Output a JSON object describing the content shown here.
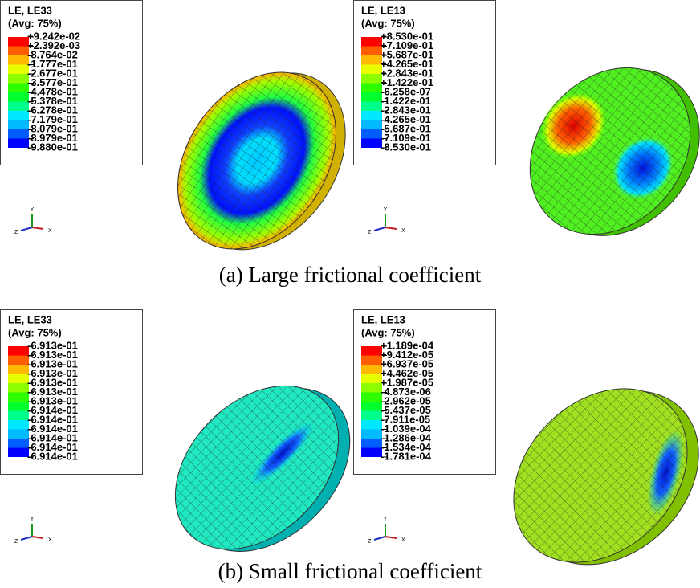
{
  "panels": [
    {
      "legend": {
        "title": "LE, LE33",
        "subtitle": "(Avg: 75%)",
        "values": [
          "+9.242e-02",
          "+2.392e-03",
          "-8.764e-02",
          "-1.777e-01",
          "-2.677e-01",
          "-3.577e-01",
          "-4.478e-01",
          "-5.378e-01",
          "-6.278e-01",
          "-7.179e-01",
          "-8.079e-01",
          "-8.979e-01",
          "-9.880e-01"
        ]
      }
    },
    {
      "legend": {
        "title": "LE, LE13",
        "subtitle": "(Avg: 75%)",
        "values": [
          "+8.530e-01",
          "+7.109e-01",
          "+5.687e-01",
          "+4.265e-01",
          "+2.843e-01",
          "+1.422e-01",
          "-6.258e-07",
          "-1.422e-01",
          "-2.843e-01",
          "-4.265e-01",
          "-5.687e-01",
          "-7.109e-01",
          "-8.530e-01"
        ]
      }
    },
    {
      "legend": {
        "title": "LE, LE33",
        "subtitle": "(Avg: 75%)",
        "values": [
          "-6.913e-01",
          "-6.913e-01",
          "-6.913e-01",
          "-6.913e-01",
          "-6.913e-01",
          "-6.913e-01",
          "-6.913e-01",
          "-6.914e-01",
          "-6.914e-01",
          "-6.914e-01",
          "-6.914e-01",
          "-6.914e-01",
          "-6.914e-01"
        ]
      }
    },
    {
      "legend": {
        "title": "LE, LE13",
        "subtitle": "(Avg: 75%)",
        "values": [
          "+1.189e-04",
          "+9.412e-05",
          "+6.937e-05",
          "+4.462e-05",
          "+1.987e-05",
          "-4.873e-06",
          "-2.962e-05",
          "-5.437e-05",
          "-7.911e-05",
          "-1.039e-04",
          "-1.286e-04",
          "-1.534e-04",
          "-1.781e-04"
        ]
      }
    }
  ],
  "axis_labels": {
    "y": "Y",
    "x": "X",
    "z": "Z"
  },
  "captions": [
    "(a) Large frictional coefficient",
    "(b) Small frictional coefficient"
  ]
}
